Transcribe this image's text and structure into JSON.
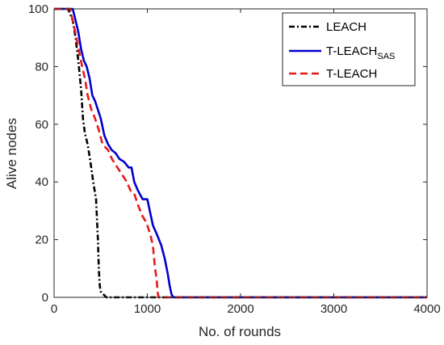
{
  "chart_data": {
    "type": "line",
    "xlabel": "No. of rounds",
    "ylabel": "Alive nodes",
    "xlim": [
      0,
      4000
    ],
    "ylim": [
      0,
      100
    ],
    "xticks": [
      "0",
      "1000",
      "2000",
      "3000",
      "4000"
    ],
    "yticks": [
      "0",
      "20",
      "40",
      "60",
      "80",
      "100"
    ],
    "grid": false,
    "legend_position": "top-right",
    "series": [
      {
        "name": "LEACH",
        "color": "#000000",
        "style": "dash-dot",
        "points": [
          [
            0,
            100
          ],
          [
            150,
            100
          ],
          [
            200,
            96
          ],
          [
            230,
            90
          ],
          [
            260,
            82
          ],
          [
            290,
            72
          ],
          [
            310,
            62
          ],
          [
            330,
            57
          ],
          [
            360,
            53
          ],
          [
            390,
            47
          ],
          [
            420,
            40
          ],
          [
            450,
            34
          ],
          [
            470,
            20
          ],
          [
            480,
            10
          ],
          [
            490,
            4
          ],
          [
            500,
            2
          ],
          [
            530,
            1
          ],
          [
            560,
            0
          ],
          [
            4000,
            0
          ]
        ]
      },
      {
        "name": "T-LEACH",
        "name_sub": "SAS",
        "color": "#0000cc",
        "style": "solid",
        "points": [
          [
            0,
            100
          ],
          [
            200,
            100
          ],
          [
            230,
            96
          ],
          [
            260,
            92
          ],
          [
            290,
            86
          ],
          [
            320,
            82
          ],
          [
            350,
            80
          ],
          [
            380,
            76
          ],
          [
            410,
            70
          ],
          [
            440,
            68
          ],
          [
            470,
            65
          ],
          [
            500,
            62
          ],
          [
            540,
            56
          ],
          [
            580,
            53
          ],
          [
            620,
            51
          ],
          [
            660,
            50
          ],
          [
            700,
            48
          ],
          [
            750,
            47
          ],
          [
            800,
            45
          ],
          [
            830,
            45
          ],
          [
            860,
            40
          ],
          [
            900,
            37
          ],
          [
            950,
            34
          ],
          [
            1000,
            34
          ],
          [
            1020,
            31
          ],
          [
            1060,
            25
          ],
          [
            1100,
            22
          ],
          [
            1150,
            18
          ],
          [
            1190,
            13
          ],
          [
            1220,
            8
          ],
          [
            1240,
            4
          ],
          [
            1260,
            1
          ],
          [
            1280,
            0
          ],
          [
            4000,
            0
          ]
        ]
      },
      {
        "name": "T-LEACH",
        "color": "#e8191a",
        "style": "dashed",
        "points": [
          [
            0,
            100
          ],
          [
            170,
            100
          ],
          [
            200,
            96
          ],
          [
            240,
            90
          ],
          [
            270,
            85
          ],
          [
            300,
            80
          ],
          [
            330,
            76
          ],
          [
            360,
            70
          ],
          [
            400,
            65
          ],
          [
            440,
            62
          ],
          [
            480,
            58
          ],
          [
            520,
            53
          ],
          [
            580,
            51
          ],
          [
            620,
            48
          ],
          [
            660,
            46
          ],
          [
            700,
            44
          ],
          [
            740,
            42
          ],
          [
            780,
            40
          ],
          [
            820,
            37
          ],
          [
            860,
            36
          ],
          [
            900,
            32
          ],
          [
            950,
            28
          ],
          [
            990,
            26
          ],
          [
            1030,
            22
          ],
          [
            1060,
            18
          ],
          [
            1080,
            11
          ],
          [
            1100,
            6
          ],
          [
            1110,
            2
          ],
          [
            1120,
            0
          ],
          [
            4000,
            0
          ]
        ]
      }
    ]
  }
}
